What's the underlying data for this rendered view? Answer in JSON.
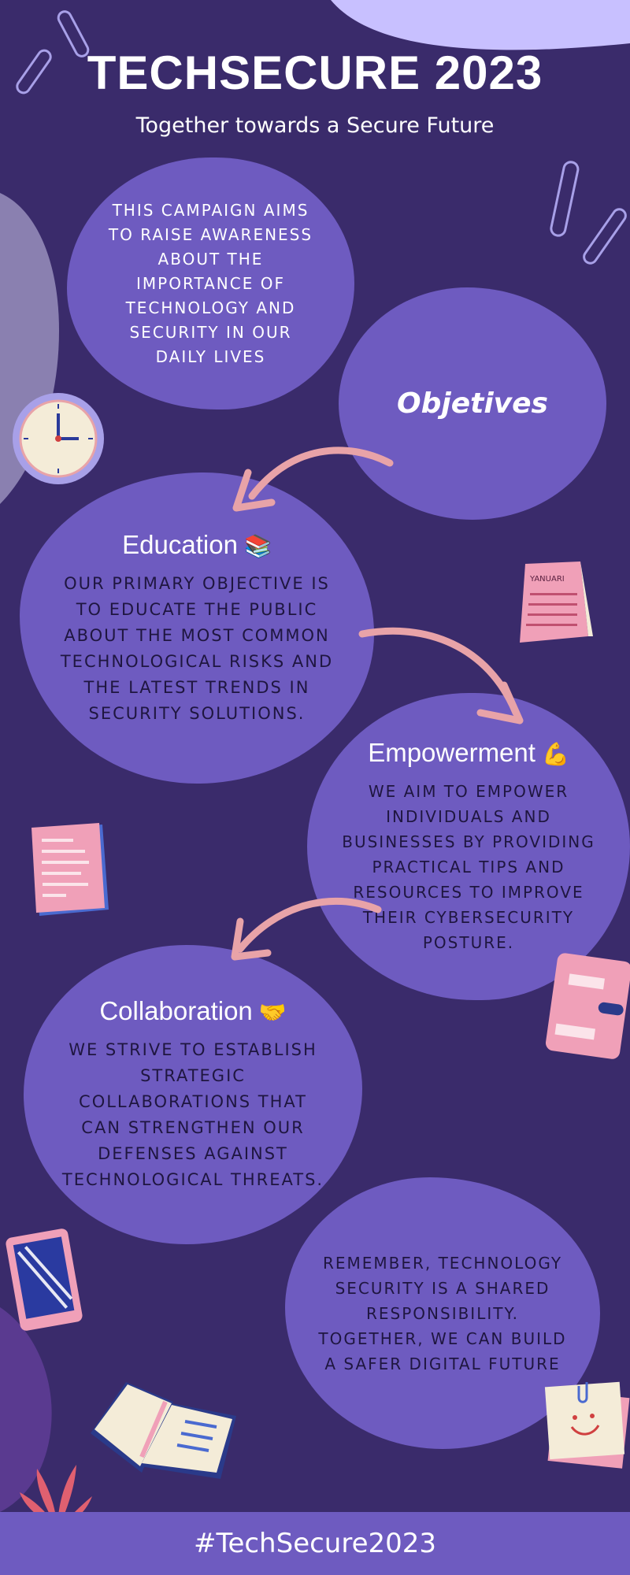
{
  "header": {
    "title": "TECHSECURE 2023",
    "subtitle": "Together towards a Secure Future"
  },
  "intro": {
    "text": "THIS CAMPAIGN AIMS TO RAISE AWARENESS ABOUT THE IMPORTANCE OF TECHNOLOGY AND SECURITY IN OUR DAILY LIVES"
  },
  "objectives": {
    "label": "Objetives"
  },
  "sections": {
    "education": {
      "heading": "Education",
      "emoji": "📚",
      "text": "OUR PRIMARY OBJECTIVE IS TO EDUCATE THE PUBLIC ABOUT THE MOST COMMON TECHNOLOGICAL RISKS AND THE LATEST TRENDS IN SECURITY SOLUTIONS."
    },
    "empowerment": {
      "heading": "Empowerment",
      "emoji": "💪",
      "text": "WE AIM TO EMPOWER INDIVIDUALS AND BUSINESSES BY PROVIDING PRACTICAL TIPS AND RESOURCES TO IMPROVE THEIR CYBERSECURITY POSTURE."
    },
    "collaboration": {
      "heading": "Collaboration",
      "emoji": "🤝",
      "text": "WE STRIVE TO ESTABLISH STRATEGIC COLLABORATIONS THAT CAN STRENGTHEN OUR DEFENSES AGAINST TECHNOLOGICAL THREATS."
    }
  },
  "closing": {
    "text": "REMEMBER, TECHNOLOGY SECURITY IS A SHARED RESPONSIBILITY. TOGETHER, WE CAN BUILD A SAFER DIGITAL FUTURE"
  },
  "footer": {
    "hashtag": "#TechSecure2023"
  },
  "decorations": {
    "calendar_text": "YANUARI"
  },
  "colors": {
    "background": "#3a2b6b",
    "blob": "#6e5bc0",
    "accent_lavender": "#c8c0ff",
    "arrow_pink": "#e8a3a8",
    "pink_item": "#f0a0b8"
  },
  "icons": [
    "paperclip-icon",
    "clock-icon",
    "calendar-icon",
    "document-icon",
    "notebook-icon",
    "tablet-icon",
    "open-book-icon",
    "plant-icon",
    "sticky-note-icon",
    "arrow-icon"
  ]
}
